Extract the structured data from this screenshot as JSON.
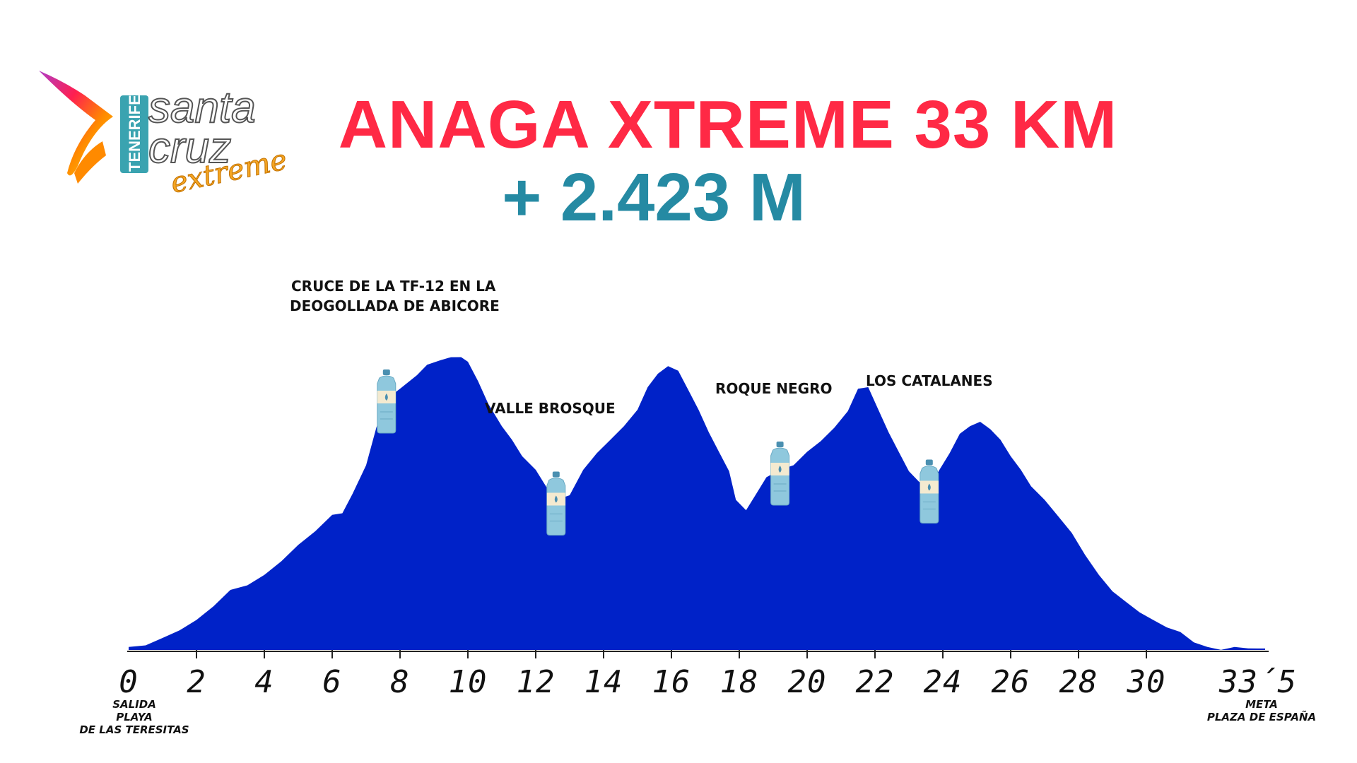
{
  "logo": {
    "line1": "santa",
    "line2": "cruz",
    "line3": "extreme",
    "side": "TENERIFE"
  },
  "title": "ANAGA XTREME 33 KM",
  "subtitle": "+ 2.423 M",
  "colors": {
    "title": "#ff2945",
    "subtitle": "#258aa3",
    "area": "#0022c8"
  },
  "annotations": {
    "cruce_l1": "CRUCE DE LA TF-12 EN LA",
    "cruce_l2": "DEOGOLLADA DE ABICORE",
    "valle": "VALLE BROSQUE",
    "roque": "ROQUE NEGRO",
    "catalanes": "LOS CATALANES"
  },
  "start_label": [
    "SALIDA",
    "PLAYA",
    "DE LAS TERESITAS"
  ],
  "finish_label": [
    "META",
    "PLAZA DE ESPAÑA"
  ],
  "chart_data": {
    "type": "area",
    "title": "ANAGA XTREME 33 KM",
    "subtitle": "+ 2.423 M",
    "xlabel": "",
    "ylabel": "",
    "x_ticks": [
      "0",
      "2",
      "4",
      "6",
      "8",
      "10",
      "12",
      "14",
      "16",
      "18",
      "20",
      "22",
      "24",
      "26",
      "28",
      "30",
      "33´5"
    ],
    "x_tick_values": [
      0,
      2,
      4,
      6,
      8,
      10,
      12,
      14,
      16,
      18,
      20,
      22,
      24,
      26,
      28,
      30,
      33.5
    ],
    "xlim": [
      0,
      33.5
    ],
    "ylim": [
      0,
      1
    ],
    "grid": false,
    "legend": "none",
    "water_points_km": [
      7.6,
      12.6,
      19.2,
      23.6
    ],
    "series": [
      {
        "x": [
          0,
          0.5,
          1,
          1.5,
          2,
          2.5,
          3,
          3.5,
          4,
          4.5,
          5,
          5.5,
          6,
          6.3,
          6.6,
          7,
          7.3,
          7.6,
          8,
          8.5,
          8.8,
          9.2,
          9.5,
          9.8,
          10,
          10.3,
          10.6,
          11,
          11.3,
          11.6,
          12,
          12.3,
          12.6,
          13,
          13.4,
          13.8,
          14.2,
          14.6,
          15,
          15.3,
          15.6,
          15.9,
          16.2,
          16.5,
          16.8,
          17.1,
          17.4,
          17.7,
          17.9,
          18.2,
          18.5,
          18.8,
          19.2,
          19.6,
          20,
          20.4,
          20.8,
          21.2,
          21.5,
          21.8,
          22.1,
          22.4,
          22.7,
          23,
          23.3,
          23.6,
          23.9,
          24.2,
          24.5,
          24.8,
          25.1,
          25.4,
          25.7,
          26,
          26.3,
          26.6,
          27,
          27.4,
          27.8,
          28.2,
          28.6,
          29,
          29.4,
          29.8,
          30.2,
          30.6,
          31,
          31.4,
          31.8,
          32.2,
          32.6,
          33,
          33.5
        ],
        "y": [
          0.01,
          0.02,
          0.04,
          0.07,
          0.1,
          0.15,
          0.2,
          0.22,
          0.25,
          0.3,
          0.35,
          0.4,
          0.45,
          0.46,
          0.52,
          0.62,
          0.74,
          0.84,
          0.87,
          0.92,
          0.95,
          0.97,
          0.975,
          0.98,
          0.96,
          0.9,
          0.82,
          0.75,
          0.7,
          0.65,
          0.6,
          0.55,
          0.5,
          0.52,
          0.6,
          0.66,
          0.7,
          0.75,
          0.8,
          0.88,
          0.92,
          0.95,
          0.93,
          0.87,
          0.8,
          0.73,
          0.66,
          0.6,
          0.5,
          0.47,
          0.52,
          0.58,
          0.6,
          0.62,
          0.66,
          0.7,
          0.74,
          0.8,
          0.87,
          0.88,
          0.8,
          0.73,
          0.66,
          0.6,
          0.56,
          0.54,
          0.6,
          0.66,
          0.72,
          0.75,
          0.76,
          0.74,
          0.7,
          0.65,
          0.6,
          0.55,
          0.5,
          0.45,
          0.39,
          0.32,
          0.25,
          0.2,
          0.16,
          0.13,
          0.1,
          0.08,
          0.06,
          0.03,
          0.01,
          0.005,
          0.01,
          0.01,
          0.005
        ]
      }
    ]
  }
}
